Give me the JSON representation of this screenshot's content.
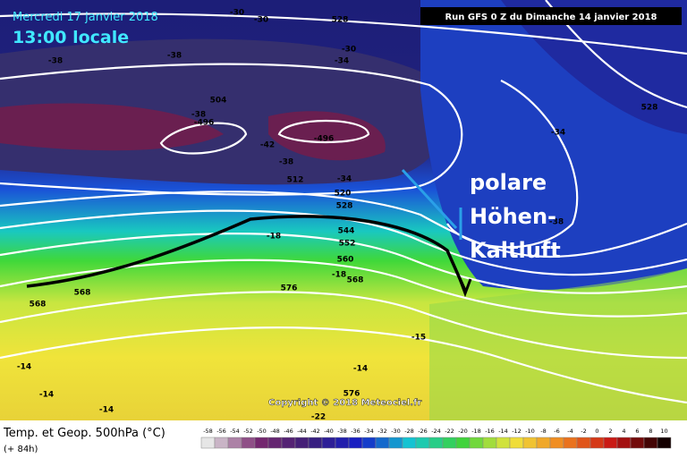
{
  "header": {
    "date": "Mercredi 17 janvier 2018",
    "time": "13:00 locale",
    "run": "Run GFS 0 Z du Dimanche 14 janvier 2018"
  },
  "annotation": {
    "lines": [
      "polare",
      "Höhen-",
      "Kaltluft"
    ]
  },
  "copyright": "Copyright © 2018 Meteociel.fr",
  "map": {
    "contour_labels": [
      "-30",
      "-30",
      "528",
      "-38",
      "-38",
      "-30",
      "-34",
      "504",
      "-38",
      "-496",
      "-42",
      "-496",
      "-38",
      "512",
      "-34",
      "520",
      "528",
      "-34",
      "528",
      "-38",
      "-18",
      "544",
      "552",
      "560",
      "-18",
      "568",
      "568",
      "568",
      "576",
      "-14",
      "-14",
      "-14",
      "-14",
      "-15",
      "576",
      "-22"
    ]
  },
  "footer": {
    "title": "Temp. et Geop. 500hPa (°C)",
    "lead": "(+ 84h)",
    "scale": [
      "-58",
      "-56",
      "-54",
      "-52",
      "-50",
      "-48",
      "-46",
      "-44",
      "-42",
      "-40",
      "-38",
      "-36",
      "-34",
      "-32",
      "-30",
      "-28",
      "-26",
      "-24",
      "-22",
      "-20",
      "-18",
      "-16",
      "-14",
      "-12",
      "-10",
      "-8",
      "-6",
      "-4",
      "-2",
      "0",
      "2",
      "4",
      "6",
      "8",
      "10"
    ]
  }
}
